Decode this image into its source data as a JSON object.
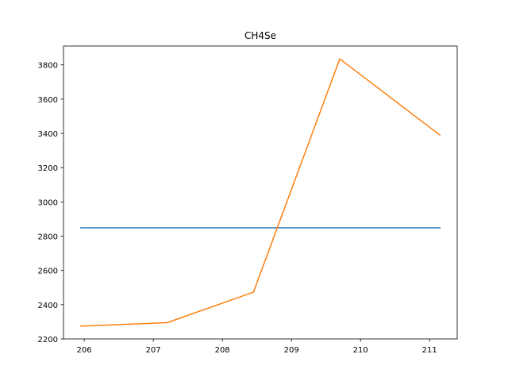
{
  "chart_data": {
    "type": "line",
    "title": "CH4Se",
    "xlabel": "",
    "ylabel": "",
    "xlim": [
      205.7,
      211.4
    ],
    "ylim": [
      2200,
      3910
    ],
    "x_ticks": [
      206,
      207,
      208,
      209,
      210,
      211
    ],
    "y_ticks": [
      2200,
      2400,
      2600,
      2800,
      3000,
      3200,
      3400,
      3600,
      3800
    ],
    "grid": false,
    "legend": "none",
    "series": [
      {
        "color": "#1f77b4",
        "x": [
          205.95,
          211.15
        ],
        "y": [
          2849,
          2849
        ]
      },
      {
        "color": "#ff7f0e",
        "x": [
          205.95,
          207.2,
          208.45,
          209.7,
          211.15
        ],
        "y": [
          2275,
          2295,
          2473,
          3835,
          3390
        ]
      }
    ]
  }
}
